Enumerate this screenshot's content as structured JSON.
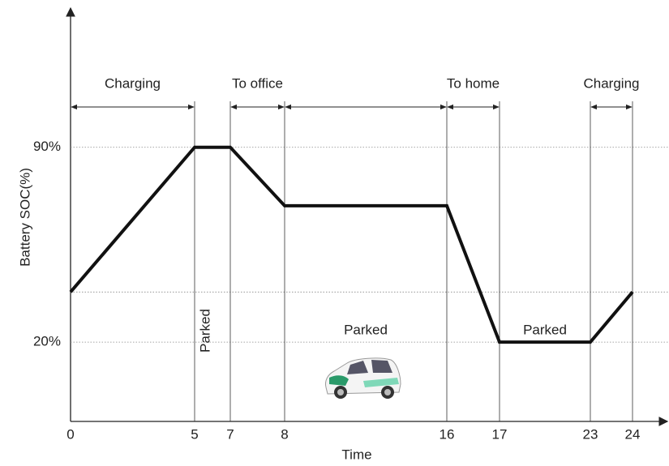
{
  "chart_data": {
    "type": "line",
    "x_label": "Time",
    "y_label": "Battery SOC(%)",
    "x": [
      0,
      5,
      7,
      8,
      16,
      17,
      23,
      24
    ],
    "values": [
      38,
      90,
      90,
      69,
      69,
      20,
      20,
      38
    ],
    "color": "#111111",
    "xticks": [
      0,
      5,
      7,
      8,
      16,
      17,
      23,
      24
    ],
    "ylim": [
      -8.5,
      140
    ],
    "yticks": [
      {
        "value": 90,
        "label": "90%"
      },
      {
        "value": 20,
        "label": "20%"
      }
    ],
    "hlines": [
      38
    ],
    "grid": true,
    "phases": [
      {
        "label": "Charging",
        "from": 0,
        "to": 5
      },
      {
        "label": "To office",
        "from": 7,
        "to": 8
      },
      {
        "from": 8,
        "to": 16
      },
      {
        "label": "To home",
        "from": 16,
        "to": 17
      },
      {
        "label": "Charging",
        "from": 23,
        "to": 24
      }
    ],
    "parked_labels": [
      {
        "text": "Parked",
        "from": 5,
        "to": 7,
        "rotated": true
      },
      {
        "text": "Parked",
        "from": 8,
        "to": 16
      },
      {
        "text": "Parked",
        "from": 17,
        "to": 23
      }
    ]
  }
}
